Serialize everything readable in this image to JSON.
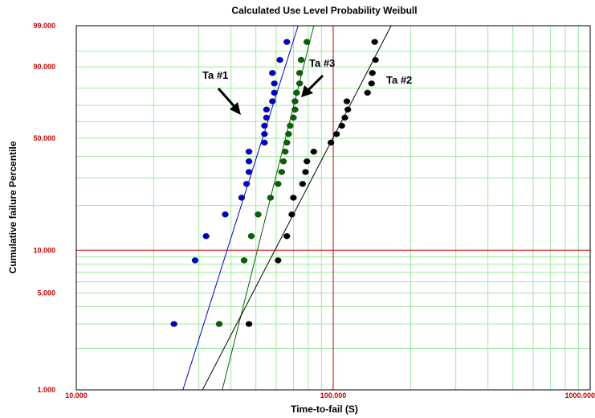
{
  "chart_data": {
    "type": "scatter",
    "title": "Calculated Use Level Probability Weibull",
    "xlabel": "Time-to-fail (S)",
    "ylabel": "Cumulative failure Percentile",
    "x_scale": "log",
    "y_scale": "weibull",
    "xlim": [
      10,
      1000
    ],
    "ylim": [
      1,
      99
    ],
    "x_tick_labels": [
      {
        "value": 10,
        "label": "10.000"
      },
      {
        "value": 100,
        "label": "100.000"
      },
      {
        "value": 1000,
        "label": "1000.000"
      }
    ],
    "y_tick_labels": [
      {
        "value": 1,
        "label": "1.000"
      },
      {
        "value": 5,
        "label": "5.000"
      },
      {
        "value": 10,
        "label": "10.000"
      },
      {
        "value": 50,
        "label": "50.000"
      },
      {
        "value": 90,
        "label": "90.000"
      },
      {
        "value": 99,
        "label": "99.000"
      }
    ],
    "grid": true,
    "series": [
      {
        "name": "Ta #1",
        "color": "#0000cc",
        "points": [
          {
            "x": 24.0,
            "y": 3.0
          },
          {
            "x": 29.0,
            "y": 8.5
          },
          {
            "x": 32.0,
            "y": 12.5
          },
          {
            "x": 38.0,
            "y": 17.5
          },
          {
            "x": 44.0,
            "y": 22.5
          },
          {
            "x": 46.0,
            "y": 27.5
          },
          {
            "x": 47.0,
            "y": 32.5
          },
          {
            "x": 47.0,
            "y": 37.5
          },
          {
            "x": 47.0,
            "y": 42.5
          },
          {
            "x": 54.0,
            "y": 47.5
          },
          {
            "x": 54.0,
            "y": 52.5
          },
          {
            "x": 54.0,
            "y": 57.5
          },
          {
            "x": 55.0,
            "y": 62.5
          },
          {
            "x": 55.0,
            "y": 67.5
          },
          {
            "x": 58.0,
            "y": 72.5
          },
          {
            "x": 59.0,
            "y": 77.5
          },
          {
            "x": 59.0,
            "y": 82.5
          },
          {
            "x": 58.0,
            "y": 87.5
          },
          {
            "x": 62.0,
            "y": 92.5
          },
          {
            "x": 66.0,
            "y": 97.0
          }
        ],
        "fit_line": [
          {
            "x": 26,
            "y": 1
          },
          {
            "x": 73,
            "y": 99
          }
        ]
      },
      {
        "name": "Ta #3",
        "color": "#006600",
        "points": [
          {
            "x": 36.0,
            "y": 3.0
          },
          {
            "x": 45.0,
            "y": 8.5
          },
          {
            "x": 48.0,
            "y": 12.5
          },
          {
            "x": 51.0,
            "y": 17.5
          },
          {
            "x": 57.0,
            "y": 22.5
          },
          {
            "x": 61.0,
            "y": 27.5
          },
          {
            "x": 63.0,
            "y": 32.5
          },
          {
            "x": 64.0,
            "y": 37.5
          },
          {
            "x": 65.0,
            "y": 42.5
          },
          {
            "x": 66.0,
            "y": 47.5
          },
          {
            "x": 67.0,
            "y": 52.5
          },
          {
            "x": 68.0,
            "y": 57.5
          },
          {
            "x": 70.0,
            "y": 62.5
          },
          {
            "x": 71.0,
            "y": 67.5
          },
          {
            "x": 71.0,
            "y": 72.5
          },
          {
            "x": 72.0,
            "y": 77.5
          },
          {
            "x": 74.0,
            "y": 82.5
          },
          {
            "x": 74.0,
            "y": 87.5
          },
          {
            "x": 75.0,
            "y": 92.5
          },
          {
            "x": 79.0,
            "y": 97.0
          }
        ],
        "fit_line": [
          {
            "x": 37,
            "y": 1
          },
          {
            "x": 84,
            "y": 99
          }
        ]
      },
      {
        "name": "Ta #2",
        "color": "#000000",
        "points": [
          {
            "x": 47.0,
            "y": 3.0
          },
          {
            "x": 61.0,
            "y": 8.5
          },
          {
            "x": 66.0,
            "y": 12.5
          },
          {
            "x": 69.0,
            "y": 17.5
          },
          {
            "x": 70.0,
            "y": 22.5
          },
          {
            "x": 76.0,
            "y": 27.5
          },
          {
            "x": 78.0,
            "y": 32.5
          },
          {
            "x": 79.0,
            "y": 37.5
          },
          {
            "x": 84.0,
            "y": 42.5
          },
          {
            "x": 98.0,
            "y": 47.5
          },
          {
            "x": 103.0,
            "y": 52.5
          },
          {
            "x": 108.0,
            "y": 57.5
          },
          {
            "x": 111.0,
            "y": 62.5
          },
          {
            "x": 114.0,
            "y": 67.5
          },
          {
            "x": 113.0,
            "y": 72.5
          },
          {
            "x": 136.0,
            "y": 77.5
          },
          {
            "x": 141.0,
            "y": 82.5
          },
          {
            "x": 142.0,
            "y": 87.5
          },
          {
            "x": 146.0,
            "y": 92.5
          },
          {
            "x": 145.0,
            "y": 97.0
          }
        ],
        "fit_line": [
          {
            "x": 31,
            "y": 1
          },
          {
            "x": 168,
            "y": 99
          }
        ]
      }
    ],
    "annotations": [
      {
        "text": "Ta #1",
        "series": "Ta #1"
      },
      {
        "text": "Ta #3",
        "series": "Ta #3"
      },
      {
        "text": "Ta #2",
        "series": "Ta #2"
      }
    ],
    "reference_lines": [
      {
        "axis": "x",
        "value": 100
      },
      {
        "axis": "y",
        "value": 10
      }
    ],
    "colors": {
      "grid": "#9fe89f",
      "reference": "#cc0000",
      "frame": "#000000",
      "tick_label": "#cc0000"
    }
  }
}
